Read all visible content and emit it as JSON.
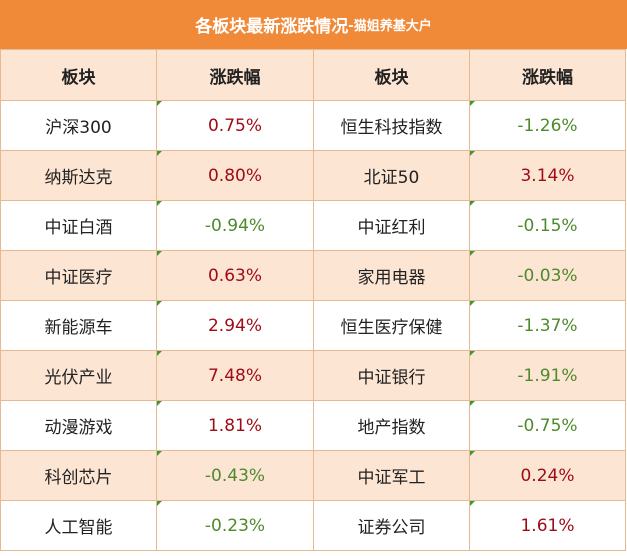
{
  "title": "各板块最新涨跌情况",
  "subtitle": "-猫姐养基大户",
  "headers": [
    "板块",
    "涨跌幅",
    "板块",
    "涨跌幅"
  ],
  "colors": {
    "header_bar": "#f08a38",
    "stripe": "#fde5d3",
    "up": "#a00b18",
    "down": "#4e8a2c"
  },
  "rows": [
    {
      "left_name": "沪深300",
      "left_change": "0.75%",
      "left_dir": "up",
      "right_name": "恒生科技指数",
      "right_change": "-1.26%",
      "right_dir": "down"
    },
    {
      "left_name": "纳斯达克",
      "left_change": "0.80%",
      "left_dir": "up",
      "right_name": "北证50",
      "right_change": "3.14%",
      "right_dir": "up"
    },
    {
      "left_name": "中证白酒",
      "left_change": "-0.94%",
      "left_dir": "down",
      "right_name": "中证红利",
      "right_change": "-0.15%",
      "right_dir": "down"
    },
    {
      "left_name": "中证医疗",
      "left_change": "0.63%",
      "left_dir": "up",
      "right_name": "家用电器",
      "right_change": "-0.03%",
      "right_dir": "down"
    },
    {
      "left_name": "新能源车",
      "left_change": "2.94%",
      "left_dir": "up",
      "right_name": "恒生医疗保健",
      "right_change": "-1.37%",
      "right_dir": "down"
    },
    {
      "left_name": "光伏产业",
      "left_change": "7.48%",
      "left_dir": "up",
      "right_name": "中证银行",
      "right_change": "-1.91%",
      "right_dir": "down"
    },
    {
      "left_name": "动漫游戏",
      "left_change": "1.81%",
      "left_dir": "up",
      "right_name": "地产指数",
      "right_change": "-0.75%",
      "right_dir": "down"
    },
    {
      "left_name": "科创芯片",
      "left_change": "-0.43%",
      "left_dir": "down",
      "right_name": "中证军工",
      "right_change": "0.24%",
      "right_dir": "up"
    },
    {
      "left_name": "人工智能",
      "left_change": "-0.23%",
      "left_dir": "down",
      "right_name": "证券公司",
      "right_change": "1.61%",
      "right_dir": "up"
    }
  ]
}
